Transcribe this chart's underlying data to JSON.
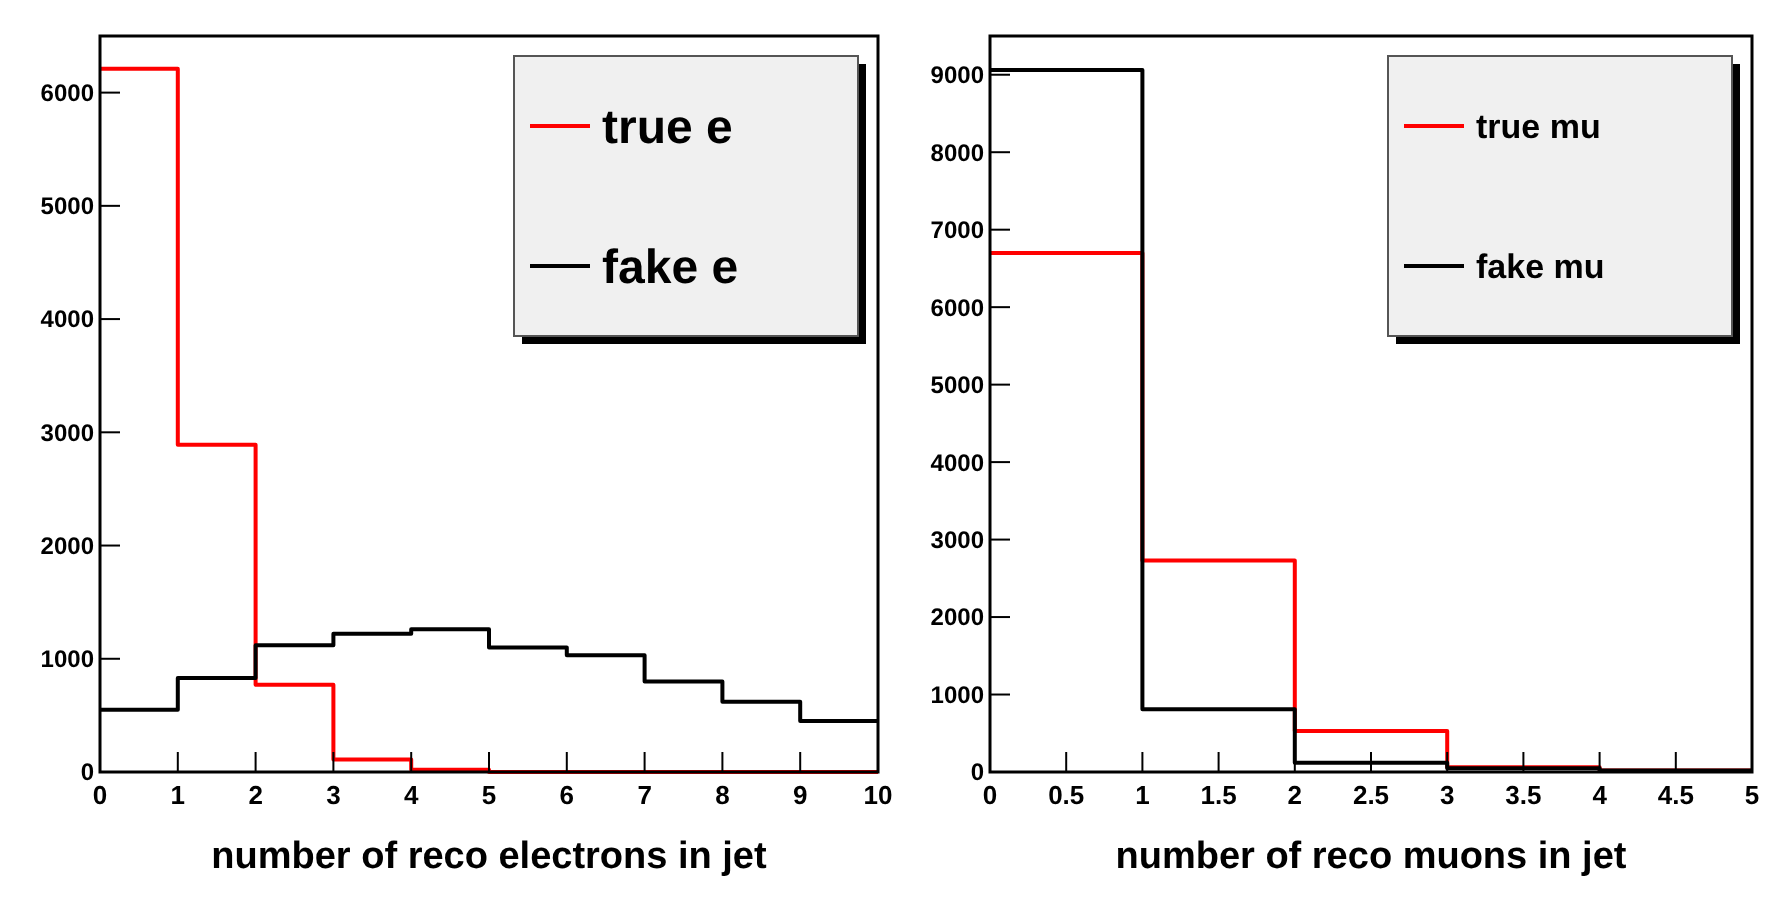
{
  "chart_data": [
    {
      "type": "histogram",
      "xlabel": "number of reco electrons in jet",
      "bins": [
        0,
        1,
        2,
        3,
        4,
        5,
        6,
        7,
        8,
        9,
        10
      ],
      "xlim": [
        0,
        10
      ],
      "xticks": [
        0,
        1,
        2,
        3,
        4,
        5,
        6,
        7,
        8,
        9,
        10
      ],
      "ylim": [
        0,
        6500
      ],
      "yticks": [
        0,
        1000,
        2000,
        3000,
        4000,
        5000,
        6000
      ],
      "legend": "top right",
      "grid": false,
      "series": [
        {
          "name": "true e",
          "color": "#ff0000",
          "values": [
            6210,
            2890,
            770,
            110,
            20,
            0,
            0,
            0,
            0,
            0
          ]
        },
        {
          "name": "fake e",
          "color": "#000000",
          "values": [
            550,
            830,
            1120,
            1220,
            1260,
            1100,
            1030,
            800,
            620,
            450
          ]
        }
      ]
    },
    {
      "type": "histogram",
      "xlabel": "number of reco muons in jet",
      "bins": [
        0,
        1,
        2,
        3,
        4,
        5
      ],
      "xlim": [
        0,
        5
      ],
      "xticks": [
        0,
        0.5,
        1,
        1.5,
        2,
        2.5,
        3,
        3.5,
        4,
        4.5,
        5
      ],
      "ylim": [
        0,
        9500
      ],
      "yticks": [
        0,
        1000,
        2000,
        3000,
        4000,
        5000,
        6000,
        7000,
        8000,
        9000
      ],
      "legend": "top right",
      "grid": false,
      "series": [
        {
          "name": "true mu",
          "color": "#ff0000",
          "values": [
            6700,
            2730,
            530,
            60,
            20
          ]
        },
        {
          "name": "fake mu",
          "color": "#000000",
          "values": [
            9060,
            810,
            120,
            50,
            20
          ]
        }
      ]
    }
  ]
}
